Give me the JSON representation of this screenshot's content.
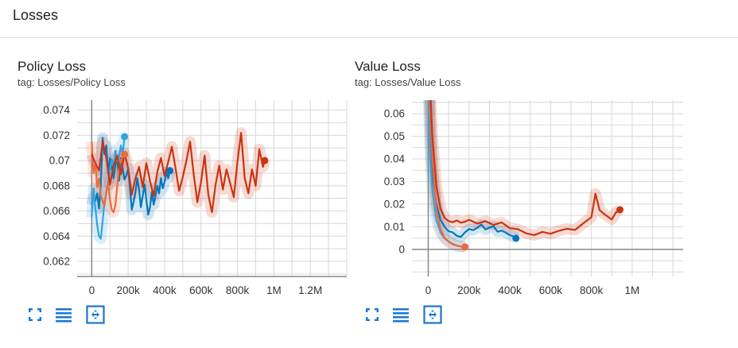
{
  "section": {
    "title": "Losses"
  },
  "colors": {
    "blue": "#0077bb",
    "lightblue": "#33a2dd",
    "orange": "#ee6a3f",
    "red": "#cc3311",
    "grid": "#d8d8d8",
    "axis": "#888888",
    "icon": "#1976d2"
  },
  "charts": [
    {
      "title": "Policy Loss",
      "tag": "tag: Losses/Policy Loss",
      "toolbar": {
        "fullscreen_icon": "fullscreen-icon",
        "data_icon": "list-icon",
        "fit_icon": "fit-domain-icon"
      }
    },
    {
      "title": "Value Loss",
      "tag": "tag: Losses/Value Loss",
      "toolbar": {
        "fullscreen_icon": "fullscreen-icon",
        "data_icon": "list-icon",
        "fit_icon": "fit-domain-icon"
      }
    }
  ],
  "chart_data": [
    {
      "type": "line",
      "title": "Policy Loss",
      "xlabel": "",
      "ylabel": "",
      "xlim": [
        -80000,
        1400000
      ],
      "ylim": [
        0.0608,
        0.0748
      ],
      "xticks": [
        0,
        200000,
        400000,
        600000,
        800000,
        1000000,
        1200000
      ],
      "xtick_labels": [
        "0",
        "200k",
        "400k",
        "600k",
        "800k",
        "1M",
        "1.2M"
      ],
      "yticks": [
        0.062,
        0.064,
        0.066,
        0.068,
        0.07,
        0.072,
        0.074
      ],
      "ytick_labels": [
        "0.062",
        "0.064",
        "0.066",
        "0.068",
        "0.07",
        "0.072",
        "0.074"
      ],
      "grid": true,
      "series": [
        {
          "color": "#0077bb",
          "x": [
            0,
            10000,
            20000,
            30000,
            40000,
            50000,
            60000,
            70000,
            80000,
            90000,
            100000,
            110000,
            120000,
            130000,
            140000,
            150000,
            160000,
            170000,
            180000,
            190000,
            200000,
            210000,
            220000,
            230000,
            240000,
            250000,
            260000,
            270000,
            280000,
            290000,
            300000,
            310000,
            320000,
            330000,
            340000,
            350000,
            360000,
            370000,
            380000,
            390000,
            400000,
            410000,
            420000,
            430000
          ],
          "y": [
            0.0665,
            0.0671,
            0.0668,
            0.0674,
            0.0662,
            0.0681,
            0.0718,
            0.0705,
            0.0712,
            0.069,
            0.0702,
            0.0695,
            0.0686,
            0.0697,
            0.0701,
            0.0684,
            0.0702,
            0.0694,
            0.0685,
            0.0688,
            0.0694,
            0.0678,
            0.0661,
            0.0667,
            0.0675,
            0.0686,
            0.0677,
            0.0663,
            0.0672,
            0.0681,
            0.0669,
            0.0657,
            0.0663,
            0.0675,
            0.0665,
            0.0672,
            0.068,
            0.0674,
            0.0686,
            0.0678,
            0.0683,
            0.0691,
            0.0686,
            0.0692
          ]
        },
        {
          "color": "#33a2dd",
          "x": [
            0,
            10000,
            20000,
            30000,
            40000,
            50000,
            60000,
            70000,
            80000,
            90000,
            100000,
            110000,
            120000,
            130000,
            140000,
            150000,
            160000,
            170000,
            180000
          ],
          "y": [
            0.0655,
            0.0678,
            0.0662,
            0.0649,
            0.064,
            0.0638,
            0.0652,
            0.0666,
            0.0674,
            0.0683,
            0.0692,
            0.0701,
            0.0694,
            0.0708,
            0.0699,
            0.0703,
            0.0712,
            0.0705,
            0.0719
          ]
        },
        {
          "color": "#ee6a3f",
          "x": [
            0,
            10000,
            20000,
            30000,
            40000,
            50000,
            60000,
            70000,
            80000,
            90000,
            100000,
            110000,
            120000,
            130000,
            140000,
            150000,
            160000,
            170000,
            180000
          ],
          "y": [
            0.0715,
            0.069,
            0.0698,
            0.0679,
            0.0686,
            0.0672,
            0.0668,
            0.0664,
            0.0675,
            0.0682,
            0.0669,
            0.0661,
            0.0659,
            0.0665,
            0.068,
            0.0695,
            0.0701,
            0.0697,
            0.0705
          ]
        },
        {
          "color": "#cc3311",
          "x": [
            0,
            20000,
            40000,
            60000,
            80000,
            100000,
            120000,
            140000,
            160000,
            180000,
            200000,
            220000,
            240000,
            260000,
            280000,
            300000,
            320000,
            340000,
            360000,
            380000,
            400000,
            420000,
            440000,
            460000,
            480000,
            500000,
            520000,
            540000,
            560000,
            580000,
            600000,
            620000,
            640000,
            660000,
            680000,
            700000,
            720000,
            740000,
            760000,
            780000,
            800000,
            820000,
            840000,
            860000,
            880000,
            900000,
            920000,
            940000,
            950000
          ],
          "y": [
            0.0705,
            0.0698,
            0.0692,
            0.0715,
            0.0702,
            0.0681,
            0.0696,
            0.0704,
            0.0689,
            0.0706,
            0.0694,
            0.0673,
            0.0686,
            0.0695,
            0.0679,
            0.0698,
            0.0684,
            0.0672,
            0.0691,
            0.0702,
            0.0688,
            0.0699,
            0.0711,
            0.0694,
            0.0676,
            0.0687,
            0.07,
            0.0715,
            0.0689,
            0.0667,
            0.0683,
            0.0704,
            0.0673,
            0.0659,
            0.0681,
            0.0696,
            0.0677,
            0.0693,
            0.0682,
            0.0671,
            0.0699,
            0.0722,
            0.0686,
            0.0674,
            0.0693,
            0.068,
            0.0709,
            0.0695,
            0.07
          ]
        }
      ]
    },
    {
      "type": "line",
      "title": "Value Loss",
      "xlabel": "",
      "ylabel": "",
      "xlim": [
        -80000,
        1250000
      ],
      "ylim": [
        -0.012,
        0.066
      ],
      "xticks": [
        0,
        200000,
        400000,
        600000,
        800000,
        1000000
      ],
      "xtick_labels": [
        "0",
        "200k",
        "400k",
        "600k",
        "800k",
        "1M"
      ],
      "yticks": [
        0,
        0.01,
        0.02,
        0.03,
        0.04,
        0.05,
        0.06
      ],
      "ytick_labels": [
        "0",
        "0.01",
        "0.02",
        "0.03",
        "0.04",
        "0.05",
        "0.06"
      ],
      "grid": true,
      "series": [
        {
          "color": "#0077bb",
          "x": [
            0,
            10000,
            20000,
            40000,
            60000,
            80000,
            100000,
            120000,
            140000,
            160000,
            180000,
            200000,
            220000,
            240000,
            260000,
            280000,
            300000,
            320000,
            340000,
            360000,
            380000,
            400000,
            420000,
            430000
          ],
          "y": [
            0.08,
            0.05,
            0.034,
            0.02,
            0.013,
            0.01,
            0.008,
            0.0075,
            0.006,
            0.0055,
            0.0075,
            0.009,
            0.0085,
            0.0095,
            0.011,
            0.0088,
            0.0096,
            0.0102,
            0.0078,
            0.0083,
            0.0074,
            0.0063,
            0.0057,
            0.0049
          ]
        },
        {
          "color": "#33a2dd",
          "x": [
            0,
            10000,
            20000,
            40000,
            60000,
            80000,
            100000,
            120000,
            140000,
            160000,
            180000
          ],
          "y": [
            0.07,
            0.04,
            0.026,
            0.013,
            0.0075,
            0.0048,
            0.0035,
            0.0025,
            0.0017,
            0.0013,
            0.0011
          ]
        },
        {
          "color": "#ee6a3f",
          "x": [
            0,
            10000,
            20000,
            40000,
            60000,
            80000,
            100000,
            120000,
            140000,
            160000,
            180000
          ],
          "y": [
            0.09,
            0.06,
            0.04,
            0.018,
            0.009,
            0.0052,
            0.0034,
            0.0022,
            0.0016,
            0.0012,
            0.001
          ]
        },
        {
          "color": "#cc3311",
          "x": [
            0,
            10000,
            20000,
            40000,
            60000,
            80000,
            100000,
            120000,
            140000,
            160000,
            180000,
            200000,
            240000,
            280000,
            320000,
            360000,
            400000,
            440000,
            480000,
            520000,
            560000,
            600000,
            640000,
            680000,
            720000,
            760000,
            800000,
            820000,
            840000,
            860000,
            880000,
            900000,
            920000,
            940000
          ],
          "y": [
            0.1,
            0.07,
            0.05,
            0.028,
            0.018,
            0.014,
            0.0125,
            0.012,
            0.0128,
            0.0118,
            0.0122,
            0.0131,
            0.0114,
            0.0125,
            0.0108,
            0.0119,
            0.0094,
            0.0089,
            0.0071,
            0.0063,
            0.0077,
            0.0069,
            0.0082,
            0.0091,
            0.0086,
            0.0115,
            0.0142,
            0.0246,
            0.0174,
            0.0158,
            0.0145,
            0.0132,
            0.0163,
            0.0175
          ]
        }
      ]
    }
  ]
}
